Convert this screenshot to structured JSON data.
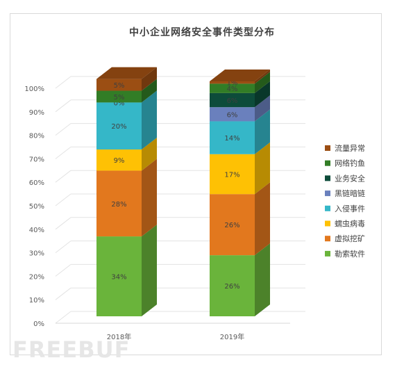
{
  "chart_data": {
    "type": "bar",
    "stacked": true,
    "title": "中小企业网络安全事件类型分布",
    "categories": [
      "2018年",
      "2019年"
    ],
    "yticks": [
      "0%",
      "10%",
      "20%",
      "30%",
      "40%",
      "50%",
      "60%",
      "70%",
      "80%",
      "90%",
      "100%"
    ],
    "ylim": [
      0,
      100
    ],
    "legend_position": "right",
    "series": [
      {
        "name": "勒索软件",
        "color": "#6ab43b",
        "values": [
          34,
          26
        ],
        "labels": [
          "34%",
          "26%"
        ]
      },
      {
        "name": "虚拟挖矿",
        "color": "#e2781e",
        "values": [
          28,
          26
        ],
        "labels": [
          "28%",
          "26%"
        ]
      },
      {
        "name": "蠕虫病毒",
        "color": "#fec104",
        "values": [
          9,
          17
        ],
        "labels": [
          "9%",
          "17%"
        ]
      },
      {
        "name": "入侵事件",
        "color": "#35b7c8",
        "values": [
          20,
          14
        ],
        "labels": [
          "20%",
          "14%"
        ]
      },
      {
        "name": "黑链暗链",
        "color": "#6a80bd",
        "values": [
          0,
          6
        ],
        "labels": [
          "",
          "6%"
        ]
      },
      {
        "name": "业务安全",
        "color": "#0d4c3a",
        "values": [
          0,
          6
        ],
        "labels": [
          "0%",
          "6%"
        ]
      },
      {
        "name": "网络钓鱼",
        "color": "#327d26",
        "values": [
          5,
          4
        ],
        "labels": [
          "5%",
          "4%"
        ]
      },
      {
        "name": "流量异常",
        "color": "#9b4e13",
        "values": [
          5,
          1
        ],
        "labels": [
          "5%",
          "1%"
        ]
      }
    ]
  },
  "watermark": "FREEBUF"
}
